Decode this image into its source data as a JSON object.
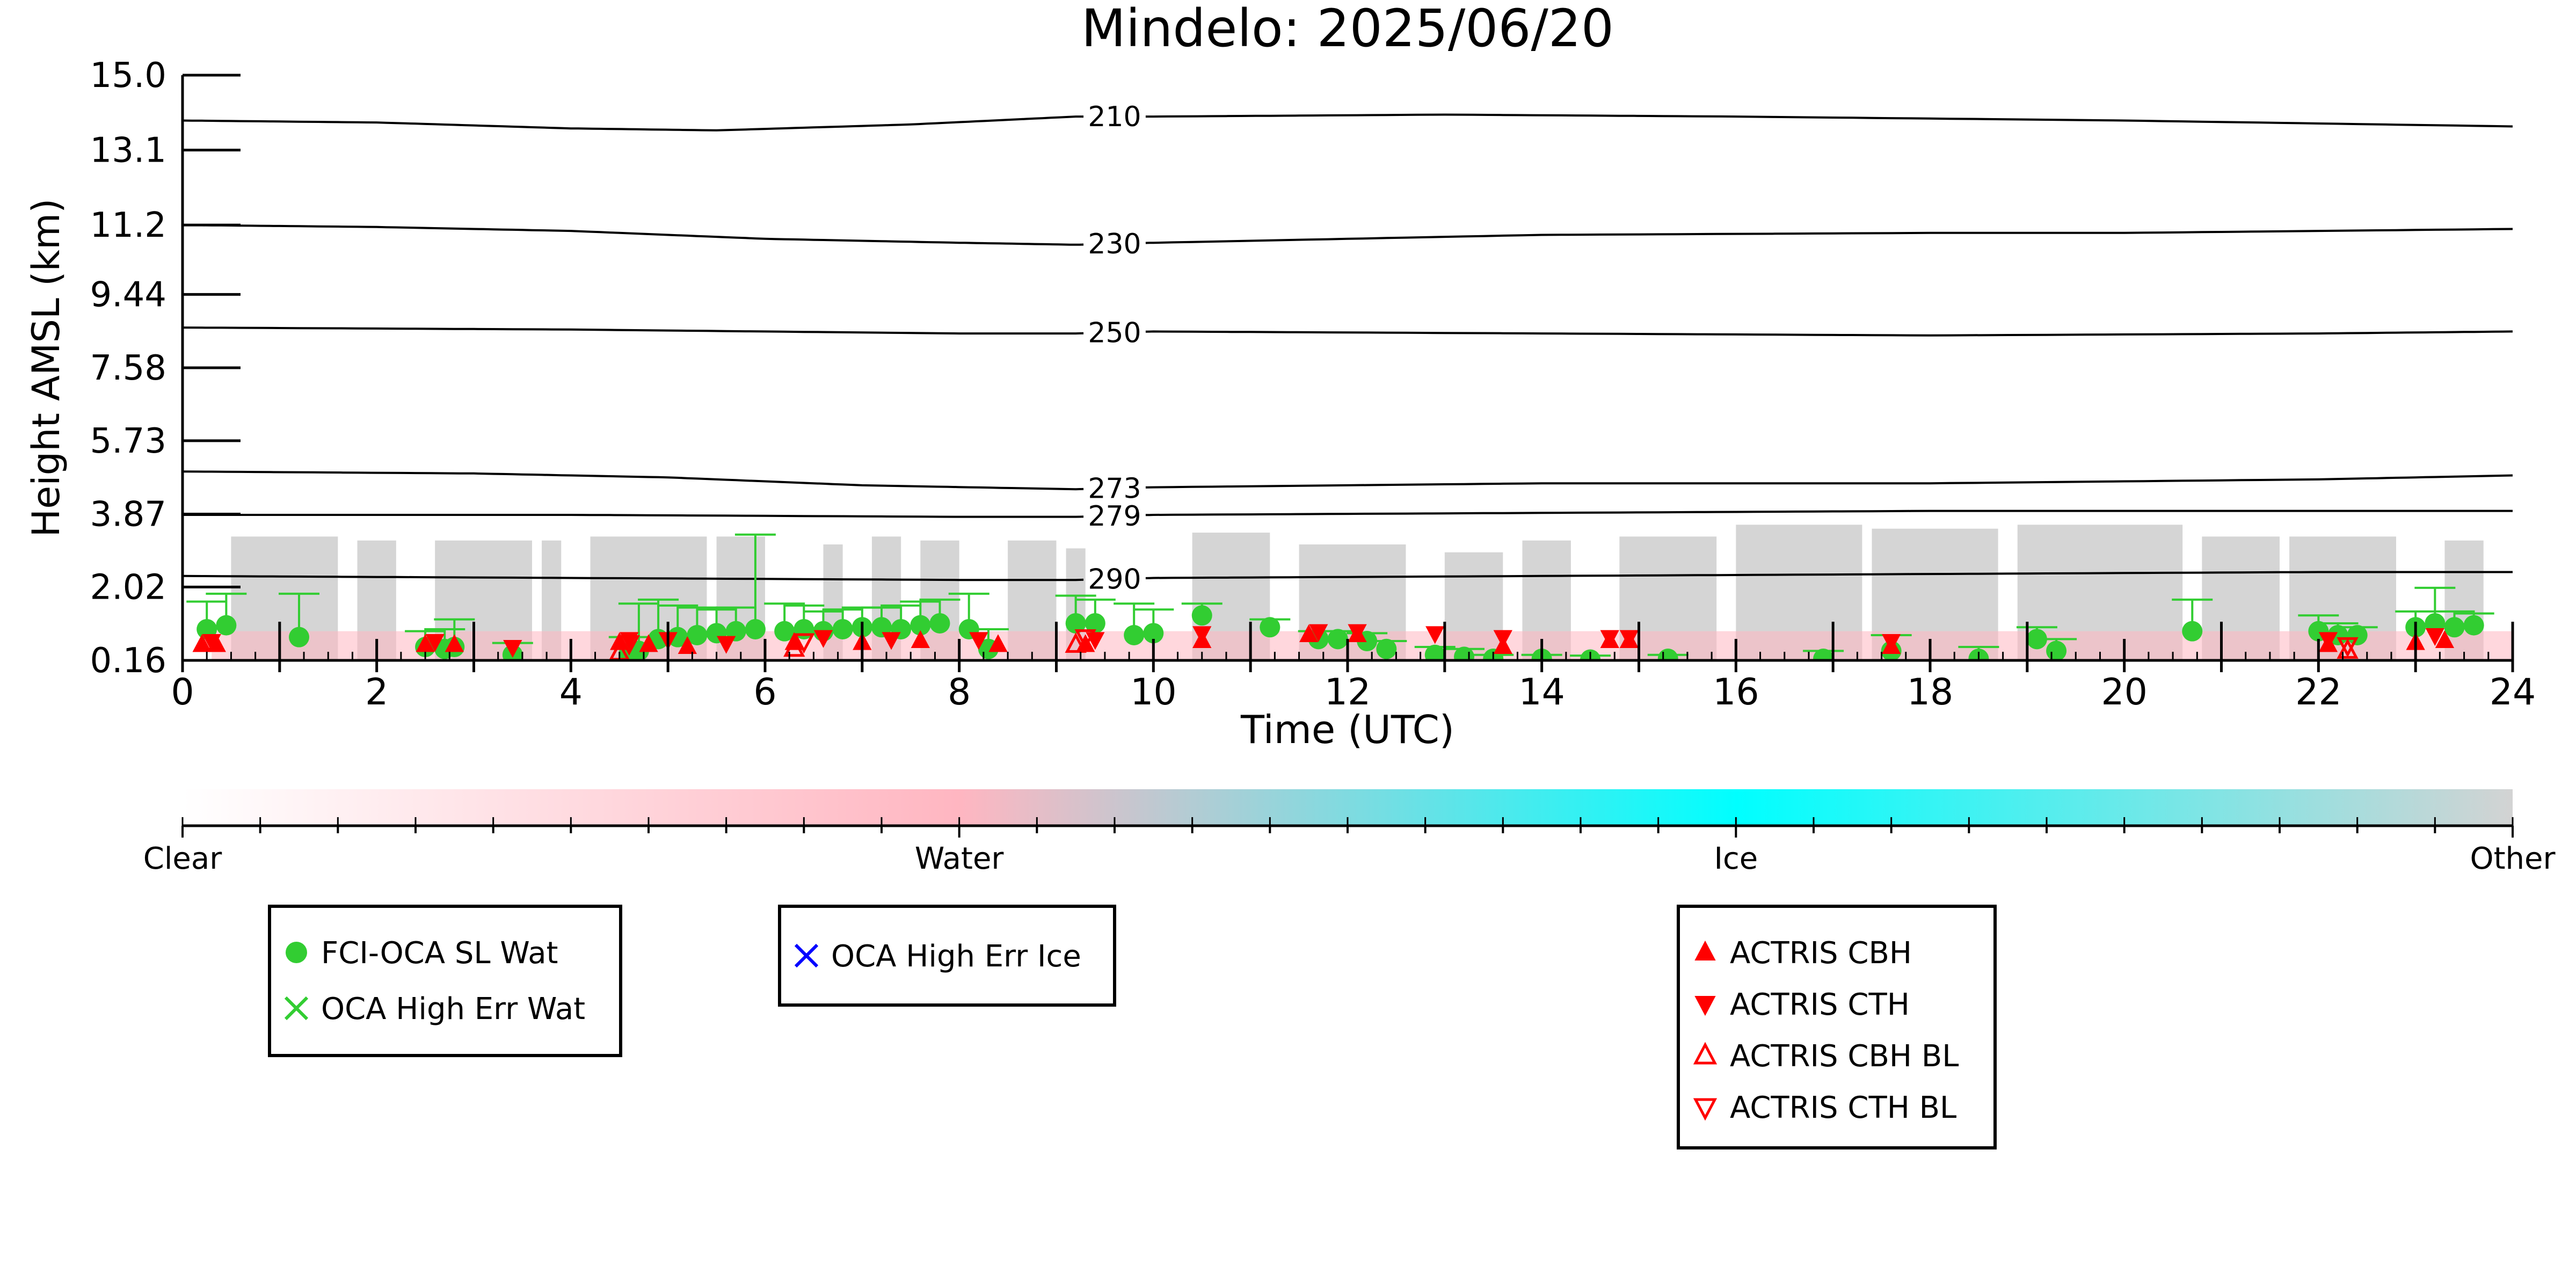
{
  "chart_data": {
    "type": "scatter",
    "title": "Mindelo: 2025/06/20",
    "xlabel": "Time (UTC)",
    "ylabel": "Height AMSL (km)",
    "xlim": [
      0,
      24
    ],
    "ylim": [
      0.16,
      15.0
    ],
    "x_ticks": [
      0,
      2,
      4,
      6,
      8,
      10,
      12,
      14,
      16,
      18,
      20,
      22,
      24
    ],
    "y_ticks": [
      0.16,
      2.02,
      3.87,
      5.73,
      7.58,
      9.44,
      11.2,
      13.1,
      15.0
    ],
    "y_tick_labels": [
      "0.16",
      "2.02",
      "3.87",
      "5.73",
      "7.58",
      "9.44",
      "11.2",
      "13.1",
      "15.0"
    ],
    "grid": false,
    "background_classification": {
      "description_color": "#d3d3d3",
      "column_tops_km": [
        {
          "x0": 0.5,
          "x1": 1.6,
          "top": 3.3
        },
        {
          "x0": 1.8,
          "x1": 2.2,
          "top": 3.2
        },
        {
          "x0": 2.6,
          "x1": 3.6,
          "top": 3.2
        },
        {
          "x0": 3.7,
          "x1": 3.9,
          "top": 3.2
        },
        {
          "x0": 4.2,
          "x1": 5.4,
          "top": 3.3
        },
        {
          "x0": 5.5,
          "x1": 6.0,
          "top": 3.3
        },
        {
          "x0": 6.6,
          "x1": 6.8,
          "top": 3.1
        },
        {
          "x0": 7.1,
          "x1": 7.4,
          "top": 3.3
        },
        {
          "x0": 7.6,
          "x1": 8.0,
          "top": 3.2
        },
        {
          "x0": 8.5,
          "x1": 9.0,
          "top": 3.2
        },
        {
          "x0": 9.1,
          "x1": 9.3,
          "top": 3.0
        },
        {
          "x0": 10.4,
          "x1": 11.2,
          "top": 3.4
        },
        {
          "x0": 11.5,
          "x1": 12.6,
          "top": 3.1
        },
        {
          "x0": 13.0,
          "x1": 13.6,
          "top": 2.9
        },
        {
          "x0": 13.8,
          "x1": 14.3,
          "top": 3.2
        },
        {
          "x0": 14.8,
          "x1": 15.8,
          "top": 3.3
        },
        {
          "x0": 16.0,
          "x1": 17.3,
          "top": 3.6
        },
        {
          "x0": 17.4,
          "x1": 18.7,
          "top": 3.5
        },
        {
          "x0": 18.9,
          "x1": 20.6,
          "top": 3.6
        },
        {
          "x0": 20.8,
          "x1": 21.6,
          "top": 3.3
        },
        {
          "x0": 21.7,
          "x1": 22.8,
          "top": 3.3
        },
        {
          "x0": 23.3,
          "x1": 23.7,
          "top": 3.2
        }
      ]
    },
    "temperature_contours": [
      {
        "label": "210",
        "label_x": 9.6,
        "points": [
          [
            0,
            13.85
          ],
          [
            2,
            13.8
          ],
          [
            4,
            13.65
          ],
          [
            5.5,
            13.6
          ],
          [
            7.5,
            13.75
          ],
          [
            9.2,
            13.95
          ],
          [
            10,
            13.95
          ],
          [
            13,
            14.0
          ],
          [
            16,
            13.95
          ],
          [
            20,
            13.85
          ],
          [
            24,
            13.7
          ]
        ]
      },
      {
        "label": "230",
        "label_x": 9.6,
        "points": [
          [
            0,
            11.2
          ],
          [
            2,
            11.15
          ],
          [
            4,
            11.05
          ],
          [
            6,
            10.85
          ],
          [
            8,
            10.75
          ],
          [
            9.2,
            10.7
          ],
          [
            10,
            10.75
          ],
          [
            14,
            10.95
          ],
          [
            18,
            11.0
          ],
          [
            20,
            11.0
          ],
          [
            24,
            11.1
          ]
        ]
      },
      {
        "label": "250",
        "label_x": 9.6,
        "points": [
          [
            0,
            8.6
          ],
          [
            4,
            8.55
          ],
          [
            8,
            8.45
          ],
          [
            9.2,
            8.45
          ],
          [
            10,
            8.5
          ],
          [
            14,
            8.45
          ],
          [
            18,
            8.4
          ],
          [
            22,
            8.45
          ],
          [
            24,
            8.5
          ]
        ]
      },
      {
        "label": "273",
        "label_x": 9.6,
        "points": [
          [
            0,
            4.95
          ],
          [
            3,
            4.9
          ],
          [
            5,
            4.8
          ],
          [
            7,
            4.6
          ],
          [
            9.2,
            4.5
          ],
          [
            10,
            4.55
          ],
          [
            14,
            4.65
          ],
          [
            18,
            4.65
          ],
          [
            22,
            4.75
          ],
          [
            24,
            4.85
          ]
        ]
      },
      {
        "label": "279",
        "label_x": 9.6,
        "points": [
          [
            0,
            3.85
          ],
          [
            4,
            3.85
          ],
          [
            8,
            3.8
          ],
          [
            9.2,
            3.8
          ],
          [
            10,
            3.85
          ],
          [
            14,
            3.9
          ],
          [
            18,
            3.95
          ],
          [
            22,
            3.95
          ],
          [
            24,
            3.95
          ]
        ]
      },
      {
        "label": "290",
        "label_x": 9.6,
        "points": [
          [
            0,
            2.3
          ],
          [
            4,
            2.25
          ],
          [
            8,
            2.2
          ],
          [
            9.2,
            2.2
          ],
          [
            10,
            2.25
          ],
          [
            14,
            2.3
          ],
          [
            18,
            2.35
          ],
          [
            22,
            2.4
          ],
          [
            24,
            2.4
          ]
        ]
      }
    ],
    "series": [
      {
        "name": "FCI-OCA SL Wat",
        "marker": "circle",
        "color": "#32cd32",
        "points": [
          [
            0.25,
            0.95,
            0.2,
            0.7
          ],
          [
            0.45,
            1.05,
            0.2,
            0.8
          ],
          [
            1.2,
            0.75,
            0.1,
            1.1
          ],
          [
            2.5,
            0.5,
            0.2,
            0.4
          ],
          [
            2.7,
            0.45,
            0.1,
            0.5
          ],
          [
            2.8,
            0.5,
            0.1,
            0.7
          ],
          [
            3.4,
            0.3,
            0.1,
            0.3
          ],
          [
            4.6,
            0.35,
            0.1,
            0.4
          ],
          [
            4.7,
            0.4,
            0.1,
            1.2
          ],
          [
            4.9,
            0.7,
            0.1,
            1.0
          ],
          [
            5.1,
            0.75,
            0.1,
            0.8
          ],
          [
            5.3,
            0.8,
            0.1,
            0.7
          ],
          [
            5.5,
            0.85,
            0.1,
            0.6
          ],
          [
            5.7,
            0.9,
            0.1,
            0.6
          ],
          [
            5.9,
            0.95,
            0.2,
            2.4
          ],
          [
            6.2,
            0.9,
            0.2,
            0.7
          ],
          [
            6.4,
            0.95,
            0.1,
            0.6
          ],
          [
            6.6,
            0.9,
            0.1,
            0.5
          ],
          [
            6.8,
            0.95,
            0.1,
            0.5
          ],
          [
            7.0,
            1.0,
            0.1,
            0.5
          ],
          [
            7.2,
            1.0,
            0.1,
            0.5
          ],
          [
            7.4,
            0.95,
            0.1,
            0.6
          ],
          [
            7.6,
            1.05,
            0.1,
            0.6
          ],
          [
            7.8,
            1.1,
            0.1,
            0.6
          ],
          [
            8.1,
            0.95,
            0.1,
            0.9
          ],
          [
            8.3,
            0.45,
            0.1,
            0.5
          ],
          [
            9.2,
            1.1,
            0.1,
            0.7
          ],
          [
            9.4,
            1.1,
            0.1,
            0.6
          ],
          [
            9.8,
            0.8,
            0.1,
            0.8
          ],
          [
            10.0,
            0.85,
            0.1,
            0.6
          ],
          [
            10.5,
            1.3,
            0.1,
            0.3
          ],
          [
            11.2,
            1.0,
            0.1,
            0.2
          ],
          [
            11.7,
            0.7,
            0.1,
            0.2
          ],
          [
            11.9,
            0.7,
            0.1,
            0.2
          ],
          [
            12.2,
            0.65,
            0.1,
            0.2
          ],
          [
            12.4,
            0.45,
            0.1,
            0.2
          ],
          [
            12.9,
            0.3,
            0.1,
            0.2
          ],
          [
            13.2,
            0.25,
            0.1,
            0.2
          ],
          [
            13.5,
            0.2,
            0.1,
            0.1
          ],
          [
            14.0,
            0.2,
            0.1,
            0.1
          ],
          [
            14.5,
            0.18,
            0.1,
            0.1
          ],
          [
            15.3,
            0.2,
            0.1,
            0.1
          ],
          [
            16.9,
            0.2,
            0.1,
            0.2
          ],
          [
            17.6,
            0.4,
            0.1,
            0.4
          ],
          [
            18.5,
            0.2,
            0.1,
            0.3
          ],
          [
            19.1,
            0.7,
            0.1,
            0.3
          ],
          [
            19.3,
            0.4,
            0.1,
            0.3
          ],
          [
            20.7,
            0.9,
            0.1,
            0.8
          ],
          [
            22.0,
            0.9,
            0.1,
            0.4
          ],
          [
            22.2,
            0.8,
            0.1,
            0.3
          ],
          [
            22.4,
            0.8,
            0.1,
            0.2
          ],
          [
            23.0,
            1.0,
            0.1,
            0.4
          ],
          [
            23.2,
            1.1,
            0.1,
            0.9
          ],
          [
            23.4,
            1.0,
            0.1,
            0.4
          ],
          [
            23.6,
            1.05,
            0.1,
            0.3
          ]
        ]
      },
      {
        "name": "OCA High Err Wat",
        "marker": "x",
        "color": "#32cd32",
        "points": []
      },
      {
        "name": "OCA High Err Ice",
        "marker": "x",
        "color": "#0000ff",
        "points": []
      },
      {
        "name": "ACTRIS CBH",
        "marker": "triangle-up",
        "color": "#ff0000",
        "points": [
          [
            0.2,
            0.55
          ],
          [
            0.35,
            0.55
          ],
          [
            2.5,
            0.55
          ],
          [
            2.8,
            0.55
          ],
          [
            4.5,
            0.6
          ],
          [
            4.8,
            0.55
          ],
          [
            5.2,
            0.5
          ],
          [
            6.3,
            0.6
          ],
          [
            7.0,
            0.6
          ],
          [
            7.6,
            0.65
          ],
          [
            8.4,
            0.55
          ],
          [
            9.3,
            0.55
          ],
          [
            10.5,
            0.65
          ],
          [
            11.6,
            0.8
          ],
          [
            12.1,
            0.8
          ],
          [
            13.6,
            0.5
          ],
          [
            14.7,
            0.65
          ],
          [
            14.9,
            0.65
          ],
          [
            17.6,
            0.5
          ],
          [
            22.1,
            0.55
          ],
          [
            23.0,
            0.6
          ],
          [
            23.3,
            0.65
          ]
        ]
      },
      {
        "name": "ACTRIS CTH",
        "marker": "triangle-down",
        "color": "#ff0000",
        "points": [
          [
            0.3,
            0.65
          ],
          [
            2.6,
            0.65
          ],
          [
            3.4,
            0.5
          ],
          [
            4.6,
            0.7
          ],
          [
            5.0,
            0.7
          ],
          [
            5.6,
            0.6
          ],
          [
            6.6,
            0.75
          ],
          [
            7.3,
            0.7
          ],
          [
            8.2,
            0.7
          ],
          [
            9.4,
            0.7
          ],
          [
            10.5,
            0.85
          ],
          [
            11.7,
            0.9
          ],
          [
            12.1,
            0.9
          ],
          [
            12.9,
            0.85
          ],
          [
            13.6,
            0.75
          ],
          [
            14.7,
            0.75
          ],
          [
            14.9,
            0.75
          ],
          [
            17.6,
            0.65
          ],
          [
            22.1,
            0.7
          ],
          [
            23.2,
            0.8
          ]
        ]
      },
      {
        "name": "ACTRIS CBH BL",
        "marker": "triangle-up-open",
        "color": "#ff0000",
        "points": [
          [
            4.5,
            0.35
          ],
          [
            6.3,
            0.45
          ],
          [
            9.2,
            0.55
          ],
          [
            22.3,
            0.4
          ]
        ]
      },
      {
        "name": "ACTRIS CTH BL",
        "marker": "triangle-down-open",
        "color": "#ff0000",
        "points": [
          [
            4.6,
            0.6
          ],
          [
            6.4,
            0.65
          ],
          [
            9.3,
            0.75
          ],
          [
            22.3,
            0.55
          ]
        ]
      }
    ],
    "colorbar": {
      "labels": [
        "Clear",
        "Water",
        "Ice",
        "Other"
      ],
      "colors": [
        "#ffffff",
        "#ffb6c1",
        "#00ffff",
        "#d3d3d3"
      ]
    },
    "legends": [
      {
        "entries": [
          "FCI-OCA SL Wat",
          "OCA High Err Wat"
        ]
      },
      {
        "entries": [
          "OCA High Err Ice"
        ]
      },
      {
        "entries": [
          "ACTRIS CBH",
          "ACTRIS CTH",
          "ACTRIS CBH BL",
          "ACTRIS CTH BL"
        ]
      }
    ]
  }
}
